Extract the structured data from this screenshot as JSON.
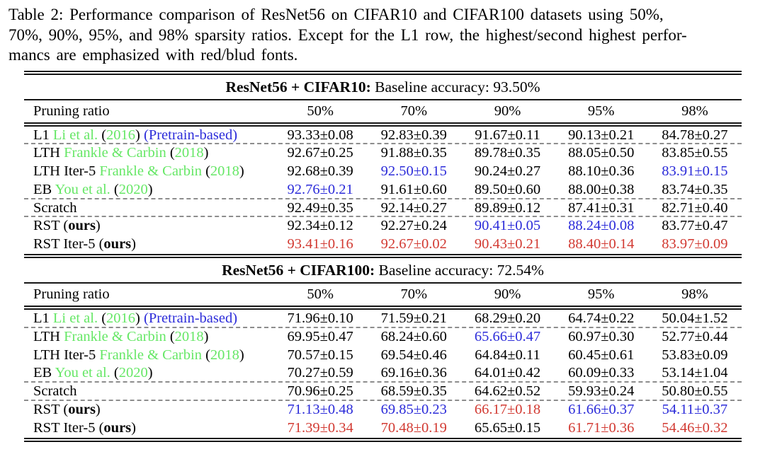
{
  "caption": {
    "lines": [
      "Table 2: Performance comparison of ResNet56 on CIFAR10 and CIFAR100 datasets using 50%,",
      "70%, 90%, 95%, and 98% sparsity ratios. Except for the L1 row, the highest/second highest perfor-",
      "mancs are emphasized with red/blud fonts."
    ]
  },
  "colors": {
    "black": "#000000",
    "green": "#66e766",
    "blue": "#2b2bd9",
    "red": "#d23a32"
  },
  "tables": [
    {
      "title_bold": "ResNet56 + CIFAR10:",
      "title_rest": "Baseline accuracy: 93.50%",
      "header": {
        "label": "Pruning ratio",
        "columns": [
          "50%",
          "70%",
          "90%",
          "95%",
          "98%"
        ]
      },
      "rows": [
        {
          "label": [
            {
              "text": "L1 ",
              "color": "black"
            },
            {
              "text": "Li et al.",
              "color": "green"
            },
            {
              "text": " (",
              "color": "black"
            },
            {
              "text": "2016",
              "color": "green"
            },
            {
              "text": ") ",
              "color": "black"
            },
            {
              "text": "(Pretrain-based)",
              "color": "blue"
            }
          ],
          "cells": [
            {
              "value": "93.33±0.08",
              "color": "black"
            },
            {
              "value": "92.83±0.39",
              "color": "black"
            },
            {
              "value": "91.67±0.11",
              "color": "black"
            },
            {
              "value": "90.13±0.21",
              "color": "black"
            },
            {
              "value": "84.78±0.27",
              "color": "black"
            }
          ],
          "dashed_after": true
        },
        {
          "label": [
            {
              "text": "LTH ",
              "color": "black"
            },
            {
              "text": "Frankle & Carbin",
              "color": "green"
            },
            {
              "text": " (",
              "color": "black"
            },
            {
              "text": "2018",
              "color": "green"
            },
            {
              "text": ")",
              "color": "black"
            }
          ],
          "cells": [
            {
              "value": "92.67±0.25",
              "color": "black"
            },
            {
              "value": "91.88±0.35",
              "color": "black"
            },
            {
              "value": "89.78±0.35",
              "color": "black"
            },
            {
              "value": "88.05±0.50",
              "color": "black"
            },
            {
              "value": "83.85±0.55",
              "color": "black"
            }
          ],
          "dashed_after": false
        },
        {
          "label": [
            {
              "text": "LTH Iter-5 ",
              "color": "black"
            },
            {
              "text": "Frankle & Carbin",
              "color": "green"
            },
            {
              "text": " (",
              "color": "black"
            },
            {
              "text": "2018",
              "color": "green"
            },
            {
              "text": ")",
              "color": "black"
            }
          ],
          "cells": [
            {
              "value": "92.68±0.39",
              "color": "black"
            },
            {
              "value": "92.50±0.15",
              "color": "blue"
            },
            {
              "value": "90.24±0.27",
              "color": "black"
            },
            {
              "value": "88.10±0.36",
              "color": "black"
            },
            {
              "value": "83.91±0.15",
              "color": "blue"
            }
          ],
          "dashed_after": false
        },
        {
          "label": [
            {
              "text": "EB ",
              "color": "black"
            },
            {
              "text": "You et al.",
              "color": "green"
            },
            {
              "text": " (",
              "color": "black"
            },
            {
              "text": "2020",
              "color": "green"
            },
            {
              "text": ")",
              "color": "black"
            }
          ],
          "cells": [
            {
              "value": "92.76±0.21",
              "color": "blue"
            },
            {
              "value": "91.61±0.60",
              "color": "black"
            },
            {
              "value": "89.50±0.60",
              "color": "black"
            },
            {
              "value": "88.00±0.38",
              "color": "black"
            },
            {
              "value": "83.74±0.35",
              "color": "black"
            }
          ],
          "dashed_after": true
        },
        {
          "label": [
            {
              "text": "Scratch",
              "color": "black"
            }
          ],
          "cells": [
            {
              "value": "92.49±0.35",
              "color": "black"
            },
            {
              "value": "92.14±0.27",
              "color": "black"
            },
            {
              "value": "89.89±0.12",
              "color": "black"
            },
            {
              "value": "87.41±0.31",
              "color": "black"
            },
            {
              "value": "82.71±0.40",
              "color": "black"
            }
          ],
          "dashed_after": true
        },
        {
          "label": [
            {
              "text": "RST (",
              "color": "black"
            },
            {
              "text": "ours",
              "color": "black",
              "bold": true
            },
            {
              "text": ")",
              "color": "black"
            }
          ],
          "cells": [
            {
              "value": "92.34±0.12",
              "color": "black"
            },
            {
              "value": "92.27±0.24",
              "color": "black"
            },
            {
              "value": "90.41±0.05",
              "color": "blue"
            },
            {
              "value": "88.24±0.08",
              "color": "blue"
            },
            {
              "value": "83.77±0.47",
              "color": "black"
            }
          ],
          "dashed_after": false
        },
        {
          "label": [
            {
              "text": "RST Iter-5 (",
              "color": "black"
            },
            {
              "text": "ours",
              "color": "black",
              "bold": true
            },
            {
              "text": ")",
              "color": "black"
            }
          ],
          "cells": [
            {
              "value": "93.41±0.16",
              "color": "red"
            },
            {
              "value": "92.67±0.02",
              "color": "red"
            },
            {
              "value": "90.43±0.21",
              "color": "red"
            },
            {
              "value": "88.40±0.14",
              "color": "red"
            },
            {
              "value": "83.97±0.09",
              "color": "red"
            }
          ],
          "dashed_after": false
        }
      ]
    },
    {
      "title_bold": "ResNet56 + CIFAR100:",
      "title_rest": "Baseline accuracy: 72.54%",
      "header": {
        "label": "Pruning ratio",
        "columns": [
          "50%",
          "70%",
          "90%",
          "95%",
          "98%"
        ]
      },
      "rows": [
        {
          "label": [
            {
              "text": "L1 ",
              "color": "black"
            },
            {
              "text": "Li et al.",
              "color": "green"
            },
            {
              "text": " (",
              "color": "black"
            },
            {
              "text": "2016",
              "color": "green"
            },
            {
              "text": ") ",
              "color": "black"
            },
            {
              "text": "(Pretrain-based)",
              "color": "blue"
            }
          ],
          "cells": [
            {
              "value": "71.96±0.10",
              "color": "black"
            },
            {
              "value": "71.59±0.21",
              "color": "black"
            },
            {
              "value": "68.29±0.20",
              "color": "black"
            },
            {
              "value": "64.74±0.22",
              "color": "black"
            },
            {
              "value": "50.04±1.52",
              "color": "black"
            }
          ],
          "dashed_after": true
        },
        {
          "label": [
            {
              "text": "LTH ",
              "color": "black"
            },
            {
              "text": "Frankle & Carbin",
              "color": "green"
            },
            {
              "text": " (",
              "color": "black"
            },
            {
              "text": "2018",
              "color": "green"
            },
            {
              "text": ")",
              "color": "black"
            }
          ],
          "cells": [
            {
              "value": "69.95±0.47",
              "color": "black"
            },
            {
              "value": "68.24±0.60",
              "color": "black"
            },
            {
              "value": "65.66±0.47",
              "color": "blue"
            },
            {
              "value": "60.97±0.30",
              "color": "black"
            },
            {
              "value": "52.77±0.44",
              "color": "black"
            }
          ],
          "dashed_after": false
        },
        {
          "label": [
            {
              "text": "LTH Iter-5 ",
              "color": "black"
            },
            {
              "text": "Frankle & Carbin",
              "color": "green"
            },
            {
              "text": " (",
              "color": "black"
            },
            {
              "text": "2018",
              "color": "green"
            },
            {
              "text": ")",
              "color": "black"
            }
          ],
          "cells": [
            {
              "value": "70.57±0.15",
              "color": "black"
            },
            {
              "value": "69.54±0.46",
              "color": "black"
            },
            {
              "value": "64.84±0.11",
              "color": "black"
            },
            {
              "value": "60.45±0.61",
              "color": "black"
            },
            {
              "value": "53.83±0.09",
              "color": "black"
            }
          ],
          "dashed_after": false
        },
        {
          "label": [
            {
              "text": "EB ",
              "color": "black"
            },
            {
              "text": "You et al.",
              "color": "green"
            },
            {
              "text": " (",
              "color": "black"
            },
            {
              "text": "2020",
              "color": "green"
            },
            {
              "text": ")",
              "color": "black"
            }
          ],
          "cells": [
            {
              "value": "70.27±0.59",
              "color": "black"
            },
            {
              "value": "69.16±0.36",
              "color": "black"
            },
            {
              "value": "64.01±0.42",
              "color": "black"
            },
            {
              "value": "60.09±0.33",
              "color": "black"
            },
            {
              "value": "53.14±1.04",
              "color": "black"
            }
          ],
          "dashed_after": true
        },
        {
          "label": [
            {
              "text": "Scratch",
              "color": "black"
            }
          ],
          "cells": [
            {
              "value": "70.96±0.25",
              "color": "black"
            },
            {
              "value": "68.59±0.35",
              "color": "black"
            },
            {
              "value": "64.62±0.52",
              "color": "black"
            },
            {
              "value": "59.93±0.24",
              "color": "black"
            },
            {
              "value": "50.80±0.55",
              "color": "black"
            }
          ],
          "dashed_after": true
        },
        {
          "label": [
            {
              "text": "RST (",
              "color": "black"
            },
            {
              "text": "ours",
              "color": "black",
              "bold": true
            },
            {
              "text": ")",
              "color": "black"
            }
          ],
          "cells": [
            {
              "value": "71.13±0.48",
              "color": "blue"
            },
            {
              "value": "69.85±0.23",
              "color": "blue"
            },
            {
              "value": "66.17±0.18",
              "color": "red"
            },
            {
              "value": "61.66±0.37",
              "color": "blue"
            },
            {
              "value": "54.11±0.37",
              "color": "blue"
            }
          ],
          "dashed_after": false
        },
        {
          "label": [
            {
              "text": "RST Iter-5 (",
              "color": "black"
            },
            {
              "text": "ours",
              "color": "black",
              "bold": true
            },
            {
              "text": ")",
              "color": "black"
            }
          ],
          "cells": [
            {
              "value": "71.39±0.34",
              "color": "red"
            },
            {
              "value": "70.48±0.19",
              "color": "red"
            },
            {
              "value": "65.65±0.15",
              "color": "black"
            },
            {
              "value": "61.71±0.36",
              "color": "red"
            },
            {
              "value": "54.46±0.32",
              "color": "red"
            }
          ],
          "dashed_after": false
        }
      ]
    }
  ]
}
